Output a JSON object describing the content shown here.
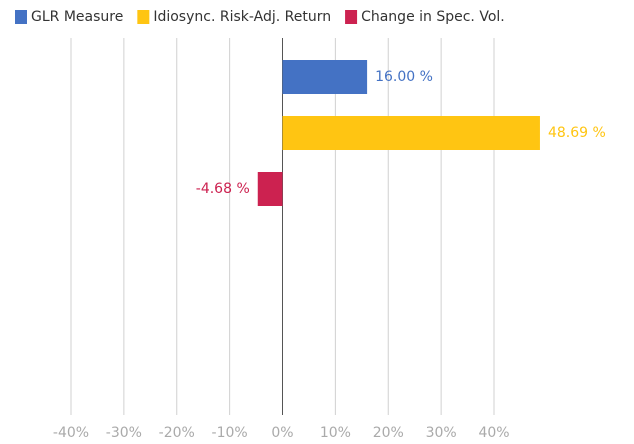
{
  "chart_data": {
    "type": "bar",
    "orientation": "horizontal",
    "series": [
      {
        "name": "GLR Measure",
        "color": "#4472c4",
        "values": [
          16.0
        ],
        "value_labels": [
          "16.00 %"
        ]
      },
      {
        "name": "Idiosync. Risk-Adj. Return",
        "color": "#ffc512",
        "values": [
          48.69
        ],
        "value_labels": [
          "48.69 %"
        ]
      },
      {
        "name": "Change in Spec. Vol.",
        "color": "#cc2250",
        "values": [
          -4.68
        ],
        "value_labels": [
          "-4.68 %"
        ]
      }
    ],
    "xlim": [
      -40,
      40
    ],
    "xticks": [
      {
        "value": -40,
        "label": "-40%"
      },
      {
        "value": -30,
        "label": "-30%"
      },
      {
        "value": -20,
        "label": "-20%"
      },
      {
        "value": -10,
        "label": "-10%"
      },
      {
        "value": 0,
        "label": "0%"
      },
      {
        "value": 10,
        "label": "10%"
      },
      {
        "value": 20,
        "label": "20%"
      },
      {
        "value": 30,
        "label": "30%"
      },
      {
        "value": 40,
        "label": "40%"
      }
    ],
    "grid": true,
    "legend": "top"
  }
}
